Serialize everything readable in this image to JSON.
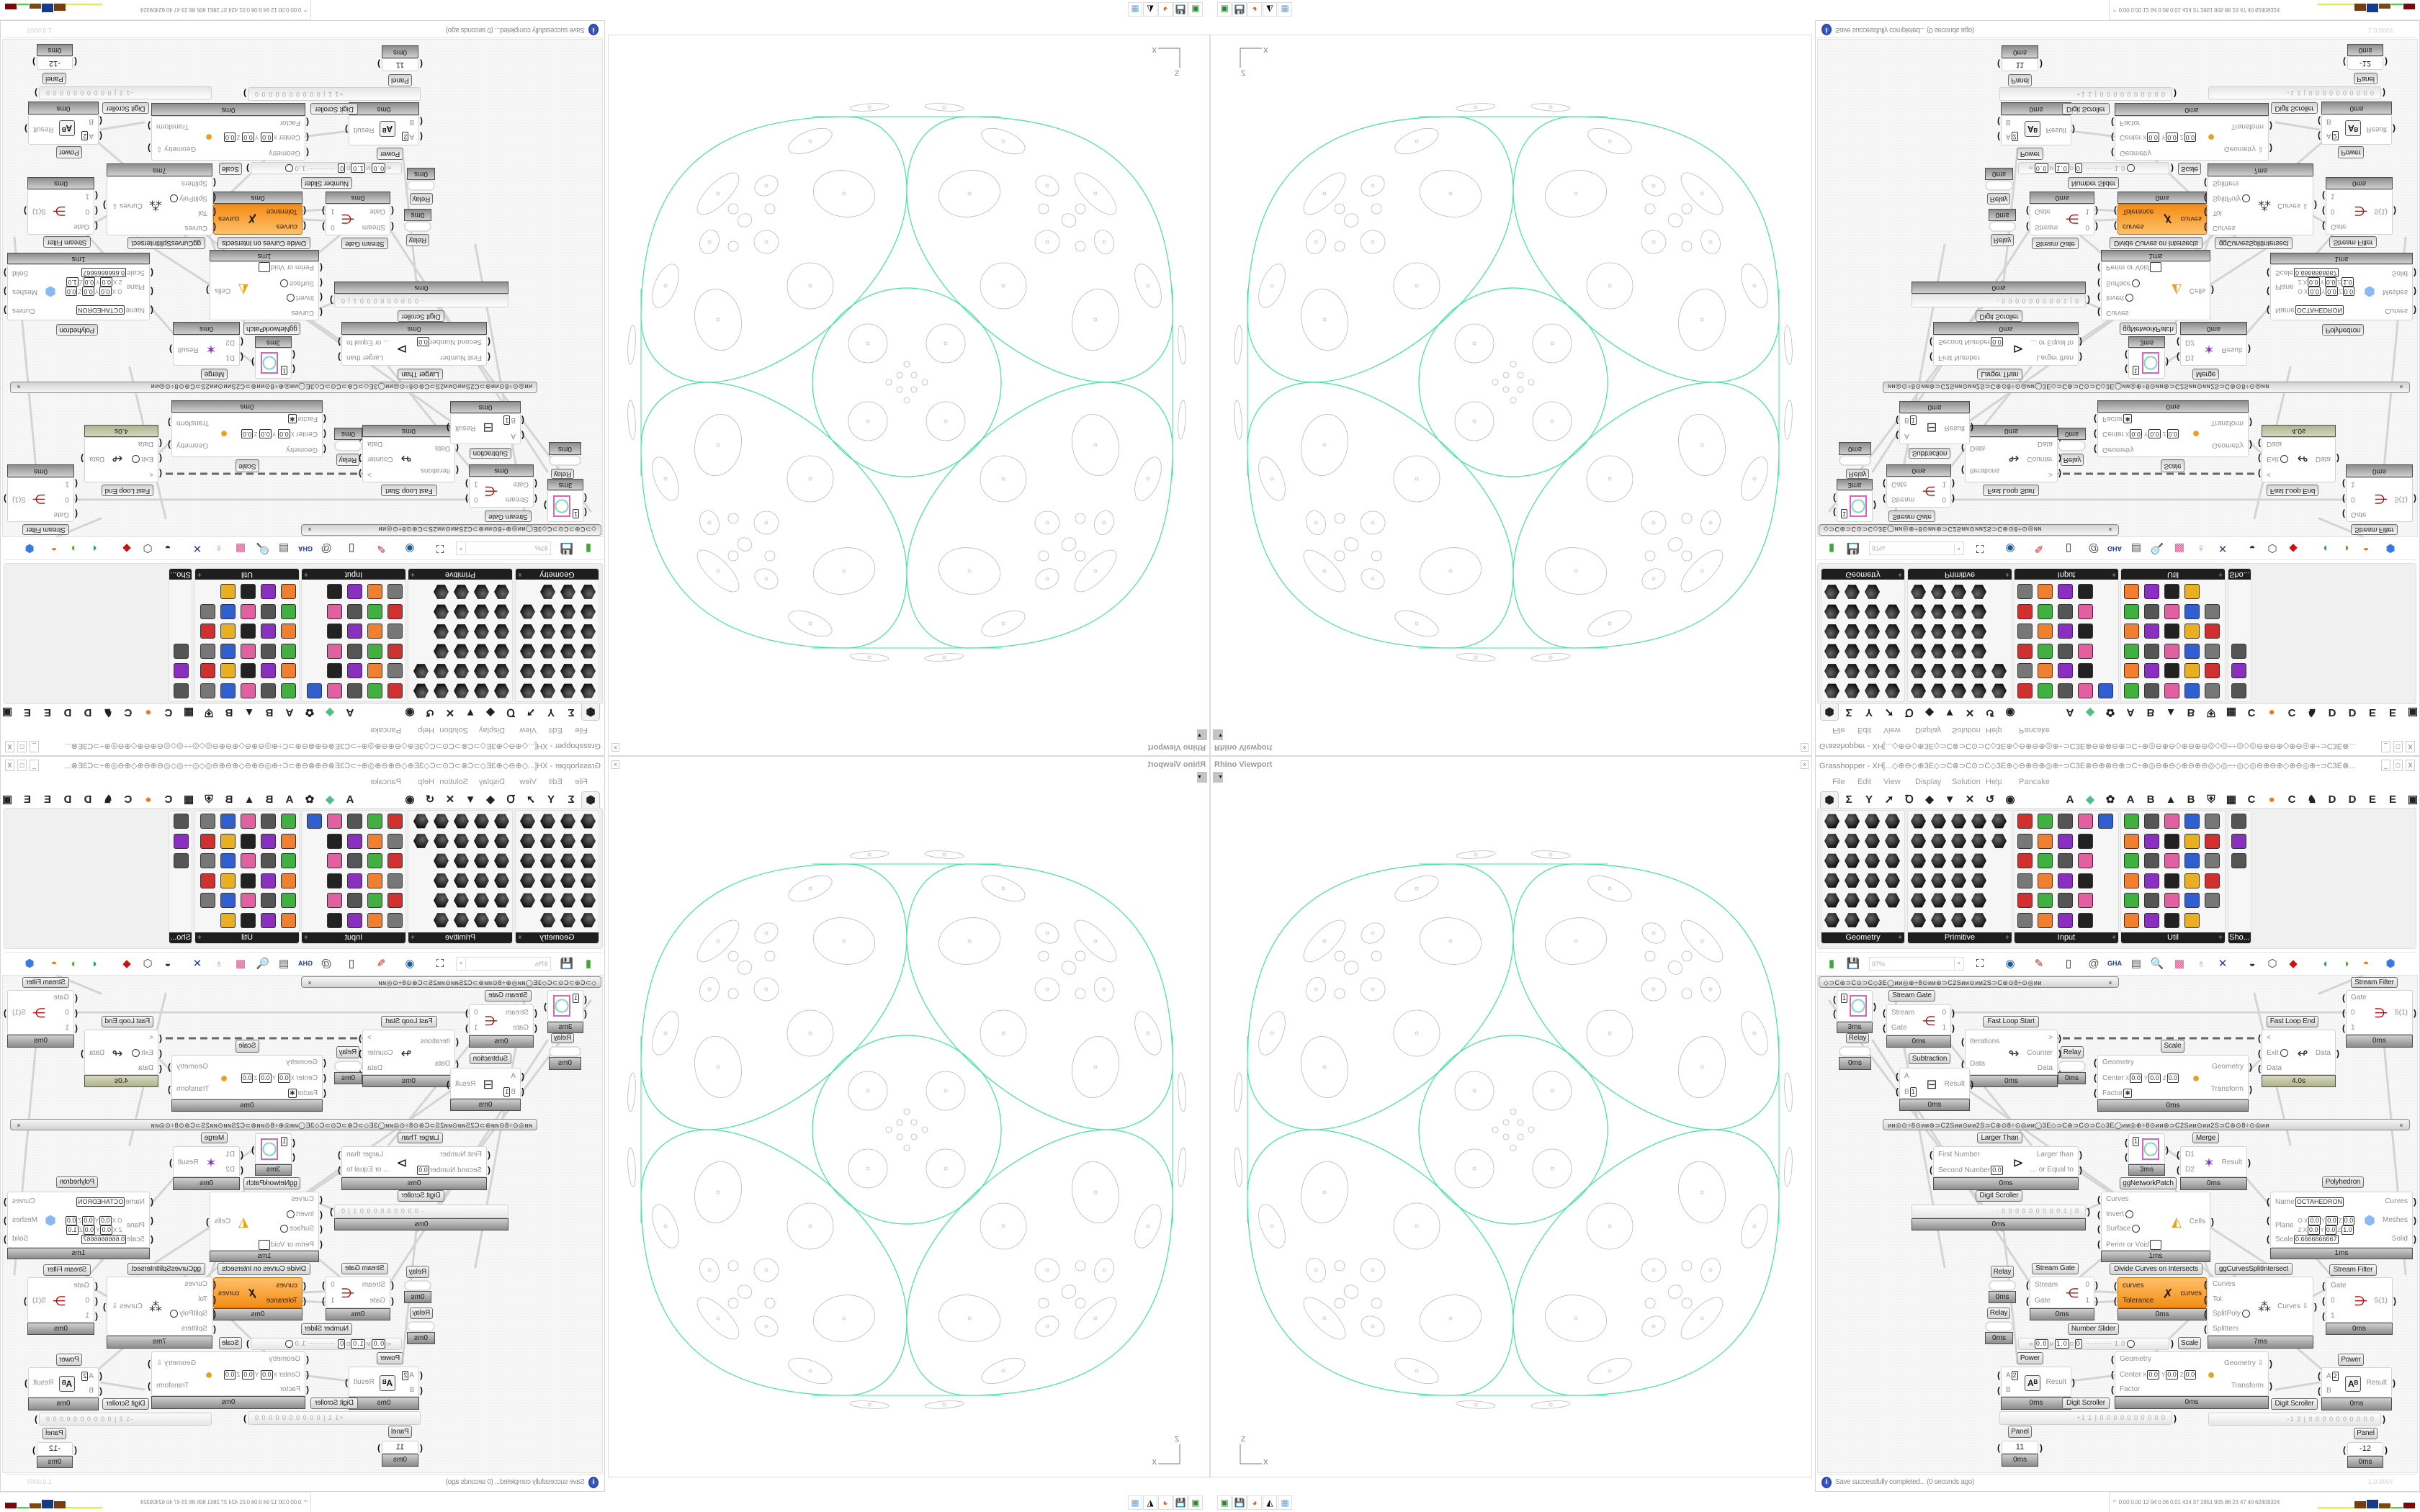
{
  "viewport": {
    "title": "Rhino Viewport",
    "close_glyph": "x",
    "dropdown_glyph": "▼",
    "axis_z": "Z",
    "axis_x": "X",
    "curve_color": "#3fe69a",
    "detail_color": "#b9b9b9"
  },
  "taskbar": {
    "icons": [
      {
        "name": "device-manager-icon",
        "glyph": "▣",
        "color": "#2a8a2a"
      },
      {
        "name": "floppy-64-icon",
        "glyph": "💾",
        "color": "#2233aa"
      },
      {
        "name": "firefox-icon",
        "glyph": "◕",
        "color": "#e8611a"
      },
      {
        "name": "inkscape-icon",
        "glyph": "◭",
        "color": "#000000"
      },
      {
        "name": "calculator-icon",
        "glyph": "▦",
        "color": "#6aa0d8"
      }
    ],
    "stats_caret": "^",
    "stats": "0.00 0.00  12   94  0.06 0.01  424   37  2851 905   86   23   47   40  62409324",
    "meter_colors": [
      "#e8e84a",
      "#7a3c08",
      "#163a8c",
      "#7a4a10",
      "#3bd43b",
      "#7a0a0a"
    ]
  },
  "grasshopper": {
    "title": "Grasshopper - XH[...◇⊕⊖◇⊕3E◇⊃C⊗⊃C⊙⊃C◇3E⊕◇⊖⊕⊖⊕◎⊕÷⊃C3E⊗⊖⊕⊗⊖⊕⊃C÷⊕◎⊖⊕⊖◇⊕⊖⊕⊖◎◇◎÷÷◎◇◎⊖⊕⊖⊕◇⊕⊖◎⊕÷⊃C3E⊗...",
    "window_buttons": [
      "_",
      "□",
      "X"
    ],
    "menu": [
      "File",
      "Edit",
      "View",
      "Display",
      "Solution",
      "Help",
      "Pancake"
    ],
    "tabs": [
      {
        "name": "params-tab",
        "glyph": "⬢"
      },
      {
        "name": "maths-tab",
        "glyph": "Σ"
      },
      {
        "name": "sets-tab",
        "glyph": "Y"
      },
      {
        "name": "vector-tab",
        "glyph": "➚"
      },
      {
        "name": "curve-tab",
        "glyph": "Ꝺ"
      },
      {
        "name": "surface-tab",
        "glyph": "◆"
      },
      {
        "name": "mesh-tab",
        "glyph": "▼"
      },
      {
        "name": "intersect-tab",
        "glyph": "✕"
      },
      {
        "name": "transform-tab",
        "glyph": "↺"
      },
      {
        "name": "display-tab",
        "glyph": "◉"
      },
      {
        "name": "tab-a1",
        "glyph": "A"
      },
      {
        "name": "crystal-tab",
        "glyph": "◆"
      },
      {
        "name": "flower-tab",
        "glyph": "✿"
      },
      {
        "name": "tab-a2",
        "glyph": "A"
      },
      {
        "name": "tab-b1",
        "glyph": "B"
      },
      {
        "name": "terrain-tab",
        "glyph": "▲"
      },
      {
        "name": "tab-b2",
        "glyph": "B"
      },
      {
        "name": "shield-tab",
        "glyph": "⛨"
      },
      {
        "name": "grid-tab",
        "glyph": "▦"
      },
      {
        "name": "tab-c1",
        "glyph": "C"
      },
      {
        "name": "orange-dot-tab",
        "glyph": "●"
      },
      {
        "name": "tab-c2",
        "glyph": "C"
      },
      {
        "name": "rooster-tab",
        "glyph": "♞"
      },
      {
        "name": "tab-d1",
        "glyph": "D"
      },
      {
        "name": "tab-d2",
        "glyph": "D"
      },
      {
        "name": "tab-e1",
        "glyph": "E"
      },
      {
        "name": "tab-e2",
        "glyph": "E"
      },
      {
        "name": "more-tabs",
        "glyph": "▣"
      }
    ],
    "panels": [
      {
        "label": "Geometry",
        "plus": "+"
      },
      {
        "label": "Primitive",
        "plus": "+"
      },
      {
        "label": "Input",
        "plus": "+"
      },
      {
        "label": "Util",
        "plus": "+"
      },
      {
        "label": "Sho..."
      }
    ],
    "toolbar": {
      "zoom": "97%",
      "zoom_dropdown": "▾",
      "icons": [
        {
          "name": "new-document-icon",
          "glyph": "▮",
          "color": "#3aa83a"
        },
        {
          "name": "save-icon",
          "glyph": "💾",
          "color": "#2233aa"
        },
        {
          "name": "zoom-extents-icon",
          "glyph": "⛶",
          "color": "#111111"
        },
        {
          "name": "preview-eye-icon",
          "glyph": "◉",
          "color": "#1a5aa0"
        },
        {
          "name": "sketch-pen-icon",
          "glyph": "✎",
          "color": "#c81e1e"
        },
        {
          "name": "cluster-icon",
          "glyph": "▯",
          "color": "#222222"
        },
        {
          "name": "at-icon",
          "glyph": "@",
          "color": "#555555"
        },
        {
          "name": "gha-icon",
          "glyph": "GHA",
          "color": "#1a3a9a"
        },
        {
          "name": "window-icon",
          "glyph": "▤",
          "color": "#555555"
        },
        {
          "name": "search-icon",
          "glyph": "🔍",
          "color": "#3a3aaa"
        },
        {
          "name": "package-icon",
          "glyph": "▩",
          "color": "#e0508a"
        },
        {
          "name": "balloon-icon",
          "glyph": "♁",
          "color": "#9090ff"
        },
        {
          "name": "wires-icon",
          "glyph": "✕",
          "color": "#2a3a9a"
        },
        {
          "name": "preview-shaded-icon",
          "glyph": "◒",
          "color": "#333333"
        },
        {
          "name": "wireframe-icon",
          "glyph": "⬡",
          "color": "#444444"
        },
        {
          "name": "selected-preview-icon",
          "glyph": "◆",
          "color": "#cc1111"
        },
        {
          "name": "mesh-preview-icon",
          "glyph": "◐",
          "color": "#1aa0a0"
        },
        {
          "name": "green-preview-icon",
          "glyph": "◑",
          "color": "#58b030"
        },
        {
          "name": "sphere-preview-icon",
          "glyph": "◓",
          "color": "#e07a10"
        },
        {
          "name": "document-preview-icon",
          "glyph": "⬢",
          "color": "#3a7ae0"
        }
      ]
    },
    "canvas": {
      "group_bars": [
        {
          "text": "◇⊃C⊛⊃C⊙⊃C◇3E◯ии◎⊕÷8⊙ии⊛⊃C2Sии⊙ии2S⊃C⊛⊙8÷⊙◎ии",
          "close": "×"
        },
        {
          "text": "ии◎⊙÷8⊙ии⊛⊃C2Sии⊙ии2S⊃C⊛⊙8÷⊙◎ии◯3E◇⊃C⊛⊃C⊙⊃C◇3E◯ии◎⊕÷8⊙ии⊛⊃C2Sии⊙ии2S⊃C⊛⊙8÷⊙◎ии",
          "close": "×"
        }
      ],
      "nodes": [
        {
          "id": "swatch-1",
          "kind": "swatch",
          "value": "1",
          "time": "3ms"
        },
        {
          "id": "relay-1",
          "kind": "relay",
          "label": "Relay",
          "time": "0ms"
        },
        {
          "id": "stream-gate-1",
          "label": "Stream Gate",
          "inputs": [
            {
              "n": "Stream"
            },
            {
              "n": "Gate"
            }
          ],
          "outputs": [
            "0",
            "1"
          ],
          "icon": "stream-gate-icon",
          "glyph": "⋲",
          "glyph_color": "#b01010",
          "time": "0ms"
        },
        {
          "id": "fast-loop-start",
          "label": "Fast Loop Start",
          "inputs": [
            {
              "n": "Iterations"
            },
            {
              "n": "Data"
            }
          ],
          "outputs": [
            ">",
            "Counter",
            "Data"
          ],
          "icon": "loop-start-icon",
          "glyph": "↬",
          "glyph_color": "#333333",
          "time": "0ms"
        },
        {
          "id": "fast-loop-end",
          "label": "Fast Loop End",
          "inputs": [
            {
              "n": "<"
            },
            {
              "n": "Exit",
              "toggle": true
            },
            {
              "n": "Data"
            }
          ],
          "outputs": [
            "Data"
          ],
          "icon": "loop-end-icon",
          "glyph": "↫",
          "glyph_color": "#333333",
          "time": "4.0s",
          "time_color": "olive"
        },
        {
          "id": "stream-filter-1",
          "label": "Stream Filter",
          "inputs": [
            {
              "n": "Gate"
            },
            {
              "n": "0"
            },
            {
              "n": "1"
            }
          ],
          "outputs": [
            "S(1)"
          ],
          "icon": "stream-filter-icon",
          "glyph": "⋺",
          "glyph_color": "#b01010",
          "time": "0ms"
        },
        {
          "id": "subtraction",
          "label": "Subtraction",
          "inputs": [
            {
              "n": "A"
            },
            {
              "n": "B",
              "v": "1"
            }
          ],
          "outputs": [
            "Result"
          ],
          "icon": "minus-icon",
          "glyph": "⊟",
          "glyph_color": "#333333",
          "time": "0ms"
        },
        {
          "id": "relay-2",
          "kind": "relay",
          "label": "Relay",
          "time": "0ms"
        },
        {
          "id": "scale-1",
          "label": "Scale",
          "inputs": [
            {
              "n": "Geometry"
            },
            {
              "n": "Center",
              "xyz": [
                "0.0",
                "0.0",
                "0.0"
              ]
            },
            {
              "n": "Factor",
              "v": "✱"
            }
          ],
          "outputs": [
            "Geometry",
            "Transform"
          ],
          "icon": "scale-icon",
          "glyph": "●",
          "glyph_color": "#e8a020",
          "time": "0ms"
        },
        {
          "id": "larger-than",
          "label": "Larger Than",
          "inputs": [
            {
              "n": "First Number"
            },
            {
              "n": "Second Number",
              "v": "0.0"
            }
          ],
          "outputs": [
            "Larger than",
            "... or Equal to"
          ],
          "icon": "greater-than-icon",
          "glyph": "⊳",
          "glyph_color": "#111111",
          "time": "0ms"
        },
        {
          "id": "swatch-2",
          "kind": "swatch",
          "value": "1",
          "label": "ggNetworkPatch",
          "time": "3ms"
        },
        {
          "id": "merge",
          "label": "Merge",
          "inputs": [
            {
              "n": "D1"
            },
            {
              "n": "D2"
            }
          ],
          "outputs": [
            "Result"
          ],
          "icon": "merge-icon",
          "glyph": "✶",
          "glyph_color": "#8a30c0",
          "time": "0ms"
        },
        {
          "id": "digit-scroller-1",
          "kind": "scroller",
          "label": "Digit Scroller",
          "digits": "· 0 0 0 0 0 0 0 0 0 1 | 0",
          "time": "0ms"
        },
        {
          "id": "cells",
          "inputs": [
            {
              "n": "Curves"
            },
            {
              "n": "Invert",
              "toggle": true
            },
            {
              "n": "Surface",
              "toggle": true
            },
            {
              "n": "Perim or Void",
              "box": true
            }
          ],
          "outputs": [
            "Cells"
          ],
          "icon": "cells-icon",
          "glyph": "◭",
          "glyph_color": "#f0a010",
          "time": "1ms"
        },
        {
          "id": "polyhedron",
          "label": "Polyhedron",
          "inputs": [
            {
              "n": "Name",
              "v": "OCTAHEDRON"
            },
            {
              "n": "Plane",
              "plane_o": [
                "0.0",
                "0.0",
                "0.0"
              ],
              "plane_z": [
                "0.0",
                "0.0",
                "1.0"
              ]
            },
            {
              "n": "Scale",
              "v": "0.6666666667"
            }
          ],
          "outputs": [
            "Curves",
            "Meshes",
            "Solid"
          ],
          "icon": "polyhedron-icon",
          "glyph": "⬢",
          "glyph_color": "#8ab8f0",
          "time": "1ms"
        },
        {
          "id": "relay-3",
          "kind": "relay",
          "label": "Relay",
          "time": "0ms"
        },
        {
          "id": "relay-4",
          "kind": "relay",
          "label": "Relay",
          "time": "0ms"
        },
        {
          "id": "stream-gate-2",
          "label": "Stream Gate",
          "inputs": [
            {
              "n": "Stream"
            },
            {
              "n": "Gate"
            }
          ],
          "outputs": [
            "0",
            "1"
          ],
          "icon": "stream-gate-icon",
          "glyph": "⋲",
          "glyph_color": "#b01010",
          "time": "0ms"
        },
        {
          "id": "divide-curves",
          "label": "Divide Curves on Intersects",
          "inputs": [
            {
              "n": "curves"
            },
            {
              "n": "Tolerance"
            }
          ],
          "outputs": [
            "curves"
          ],
          "icon": "intersect-icon",
          "glyph": "✗",
          "glyph_color": "#2a1a00",
          "time": "0ms",
          "accent": "orange"
        },
        {
          "id": "gg-curves-split",
          "label": "ggCurvesSplitIntersect",
          "inputs": [
            {
              "n": "Curves"
            },
            {
              "n": "Tol"
            },
            {
              "n": "SplitPoly",
              "toggle": true
            },
            {
              "n": "Splitters"
            }
          ],
          "outputs": [
            "Curves ⇩"
          ],
          "icon": "split-curves-icon",
          "glyph": "⁂",
          "glyph_color": "#333333",
          "time": "7ms"
        },
        {
          "id": "stream-filter-2",
          "label": "Stream Filter",
          "inputs": [
            {
              "n": "Gate"
            },
            {
              "n": "0"
            },
            {
              "n": "1"
            }
          ],
          "outputs": [
            "S(1)"
          ],
          "icon": "stream-filter-icon",
          "glyph": "⋺",
          "glyph_color": "#b01010",
          "time": "0ms"
        },
        {
          "id": "number-slider",
          "kind": "slider",
          "label": "Number Slider",
          "min_label": "m",
          "min": "0.0",
          "max_label": "M",
          "max": "1.0",
          "dec_label": "D",
          "decimals": "0",
          "value": "1.0"
        },
        {
          "id": "scale-2",
          "label": "Scale",
          "inputs": [
            {
              "n": "Geometry"
            },
            {
              "n": "Center",
              "xyz": [
                "0.0",
                "0.0",
                "0.0"
              ]
            },
            {
              "n": "Factor"
            }
          ],
          "outputs": [
            "Geometry ⇩",
            "Transform"
          ],
          "icon": "scale-icon",
          "glyph": "●",
          "glyph_color": "#e8a020",
          "time": "0ms"
        },
        {
          "id": "power-1",
          "label": "Power",
          "inputs": [
            {
              "n": "A",
              "v": "2"
            },
            {
              "n": "B"
            }
          ],
          "outputs": [
            "Result"
          ],
          "icon": "power-icon",
          "glyph": "Aᴮ",
          "glyph_color": "#111111",
          "time": "0ms"
        },
        {
          "id": "digit-scroller-2",
          "kind": "scroller",
          "label": "Digit Scroller",
          "digits": "+1 1 | 0 0 0 0 0 0 0 0 0 0"
        },
        {
          "id": "power-2",
          "label": "Power",
          "inputs": [
            {
              "n": "A",
              "v": "2"
            },
            {
              "n": "B"
            }
          ],
          "outputs": [
            "Result"
          ],
          "icon": "power-icon",
          "glyph": "Aᴮ",
          "glyph_color": "#111111",
          "time": "0ms"
        },
        {
          "id": "digit-scroller-3",
          "kind": "scroller",
          "label": "Digit Scroller",
          "digits": "-1 2 | 0 0 0 0 0 0 0 0 0 0"
        },
        {
          "id": "panel-1",
          "kind": "panel",
          "label": "Panel",
          "value": "11",
          "time": "0ms"
        },
        {
          "id": "panel-2",
          "kind": "panel",
          "label": "Panel",
          "value": "-12",
          "time": "0ms"
        }
      ]
    },
    "status": {
      "icon": "i",
      "message": "Save successfully completed... (0 seconds ago)",
      "version": "1.0.0007"
    }
  }
}
